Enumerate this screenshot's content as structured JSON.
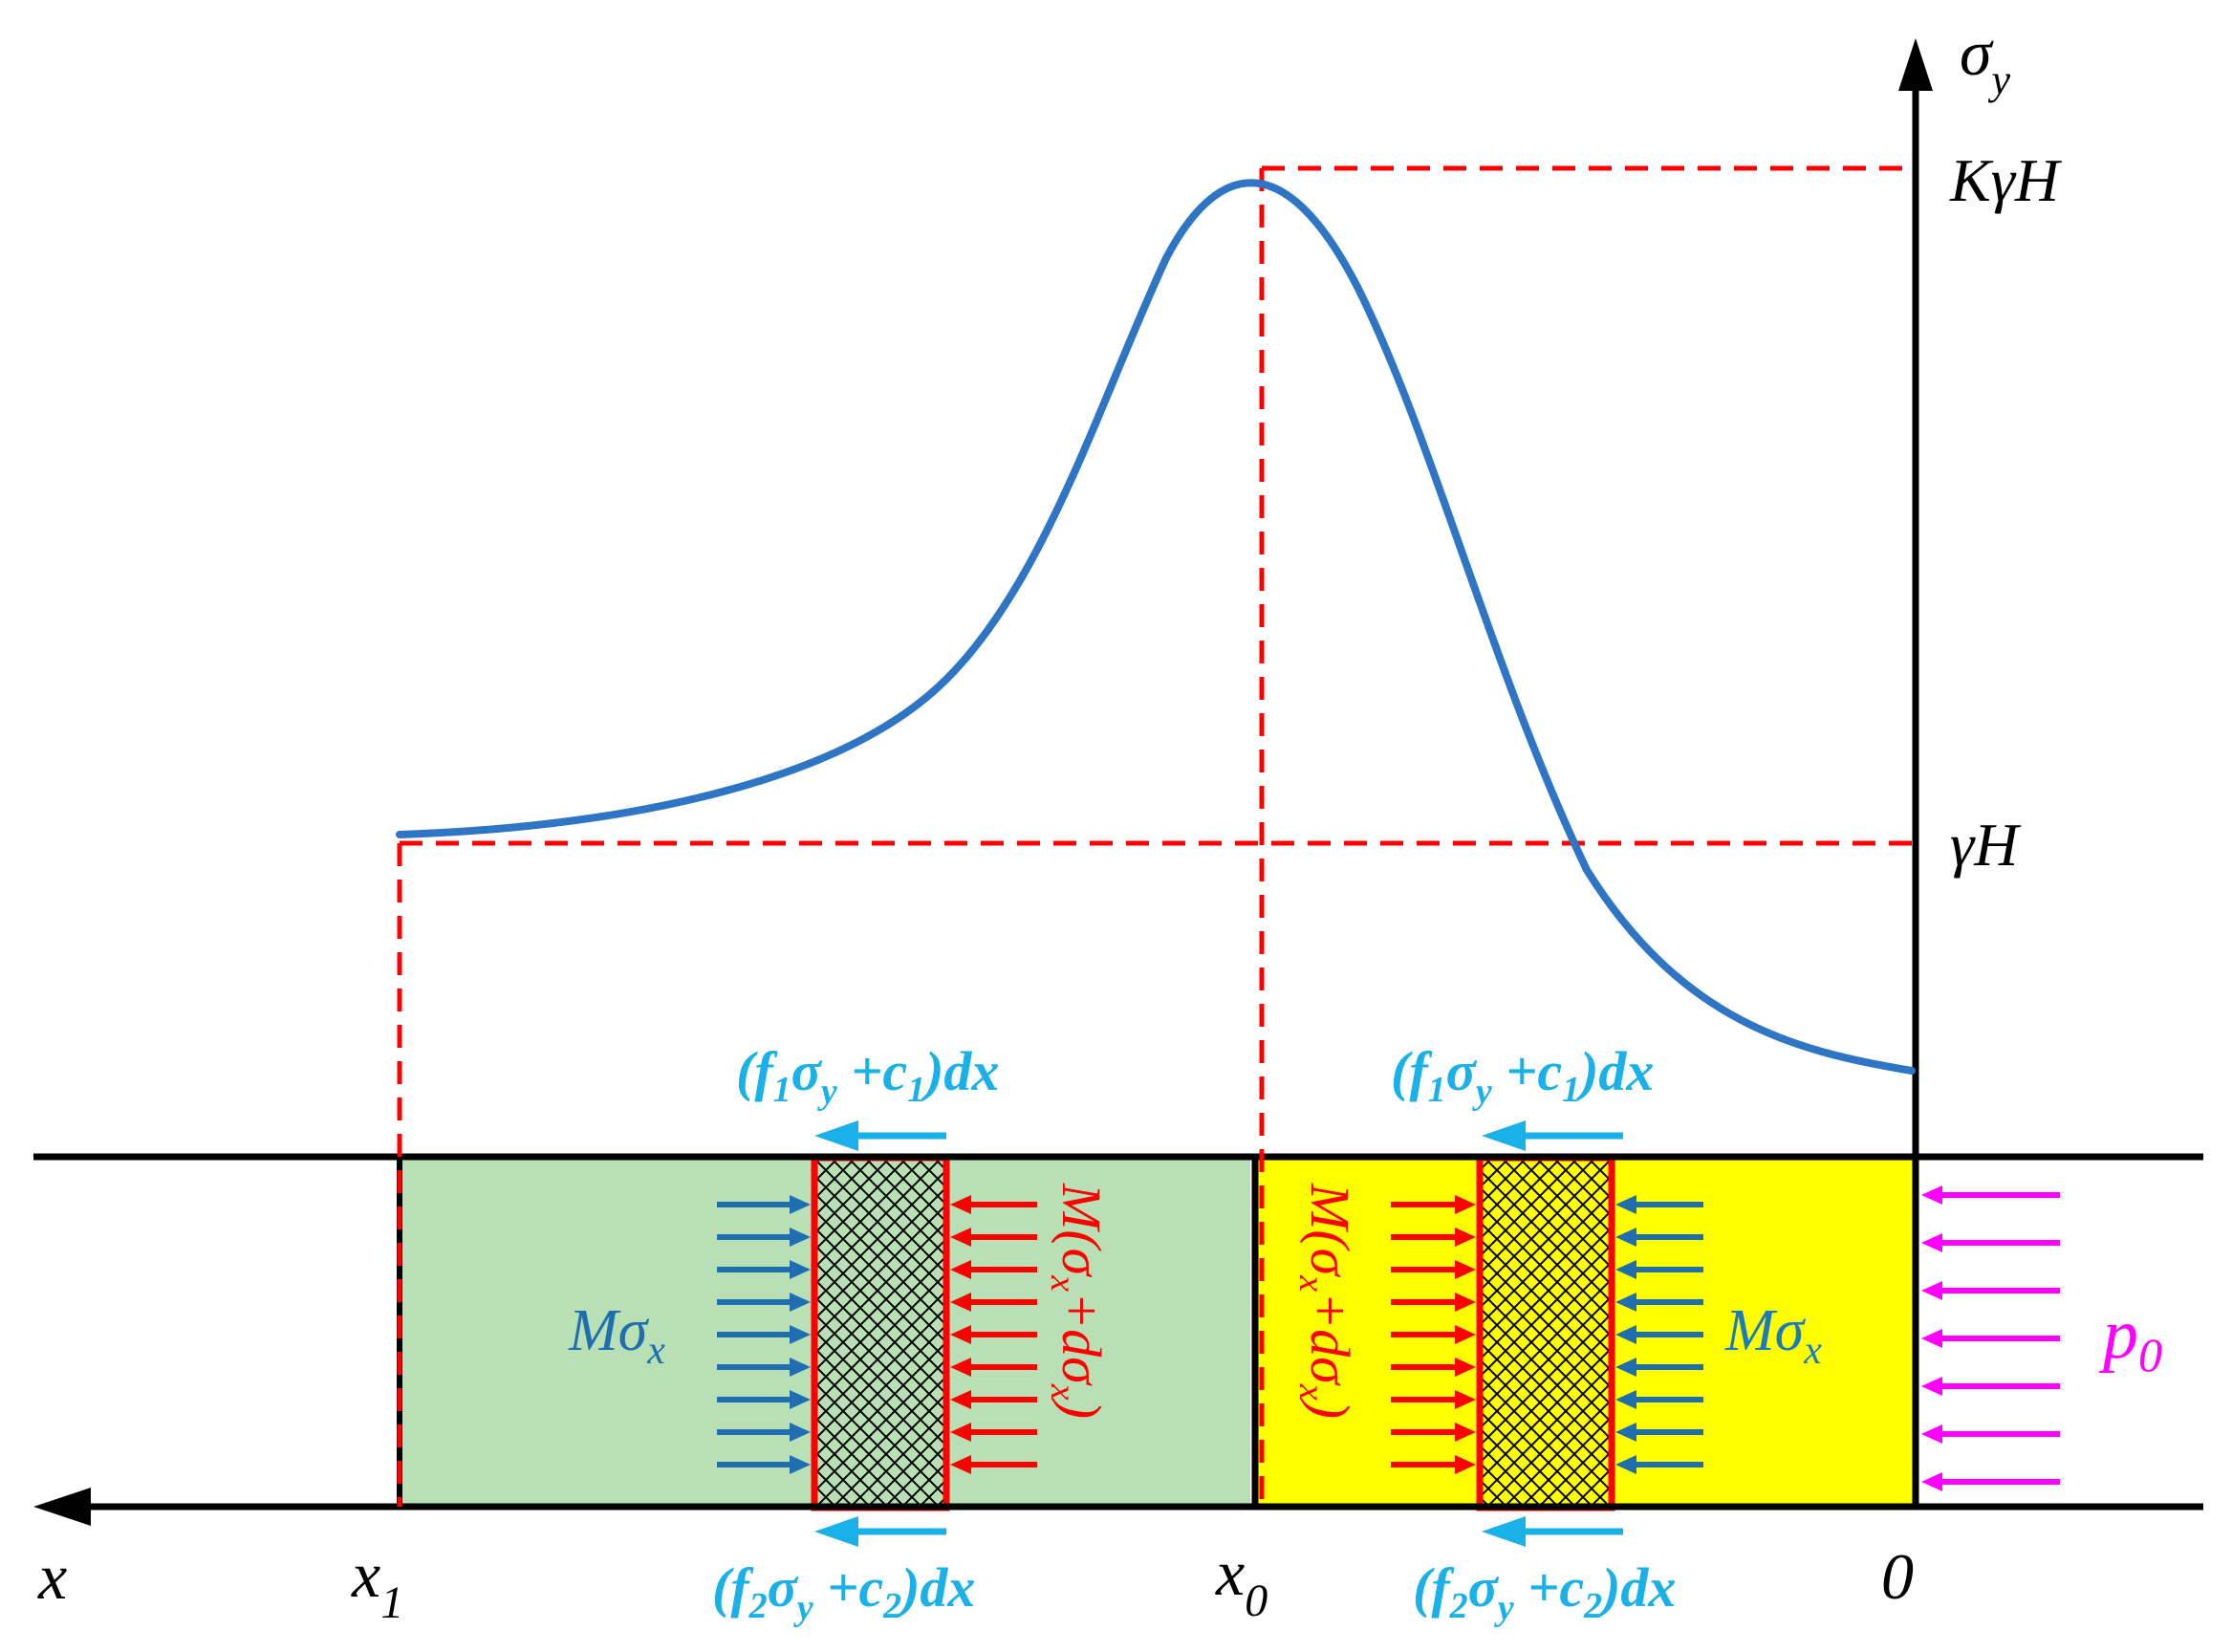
{
  "colors": {
    "curve": "#2f75c6",
    "guide": "#ff0000",
    "zone_green": "#b8e0b4",
    "zone_yellow": "#ffff00",
    "arrow_blue": "#1f6fb0",
    "arrow_red": "#ff0000",
    "arrow_cyan": "#1ab0e8",
    "arrow_magenta": "#ff00ff",
    "mesh": "#000000"
  },
  "axes": {
    "x_label": "x",
    "y_label_base": "σ",
    "y_label_sub": "y"
  },
  "y_ticks": {
    "peak": "KγH",
    "initial": "γH"
  },
  "x_ticks": {
    "x1_base": "x",
    "x1_sub": "1",
    "x0_base": "x",
    "x0_sub": "0",
    "origin": "0"
  },
  "boundary": {
    "load_base": "p",
    "load_sub": "0"
  },
  "plastic_zone": {
    "top_shear": {
      "open": "(f",
      "f_idx": "1",
      "sigma": "σ",
      "sigma_sub": "y",
      "plus": " +c",
      "c_idx": "1",
      "close": ")dx"
    },
    "bottom_shear": {
      "open": "(f",
      "f_idx": "2",
      "sigma": "σ",
      "sigma_sub": "y",
      "plus": " +c",
      "c_idx": "2",
      "close": ")dx"
    },
    "left_force": {
      "base": "Mσ",
      "sub": "x"
    },
    "right_force": {
      "open": "M(σ",
      "sub1": "x",
      "mid": "+dσ",
      "sub2": "x",
      "close": ")"
    }
  },
  "elastic_zone": {
    "top_shear": {
      "open": "(f",
      "f_idx": "1",
      "sigma": "σ",
      "sigma_sub": "y",
      "plus": " +c",
      "c_idx": "1",
      "close": ")dx"
    },
    "bottom_shear": {
      "open": "(f",
      "f_idx": "2",
      "sigma": "σ",
      "sigma_sub": "y",
      "plus": " +c",
      "c_idx": "2",
      "close": ")dx"
    },
    "left_force": {
      "open": "M(σ",
      "sub1": "x",
      "mid": "+dσ",
      "sub2": "x",
      "close": ")"
    },
    "right_force": {
      "base": "Mσ",
      "sub": "x"
    }
  }
}
